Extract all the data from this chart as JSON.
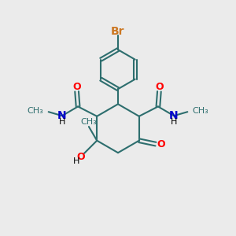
{
  "bg_color": "#ebebeb",
  "bond_color": "#2d6e6e",
  "bond_width": 1.5,
  "O_color": "#ff0000",
  "N_color": "#0000cc",
  "Br_color": "#cc7722",
  "font_size": 9,
  "figsize": [
    3.0,
    3.0
  ],
  "dpi": 100,
  "xlim": [
    0,
    10
  ],
  "ylim": [
    0,
    10
  ]
}
